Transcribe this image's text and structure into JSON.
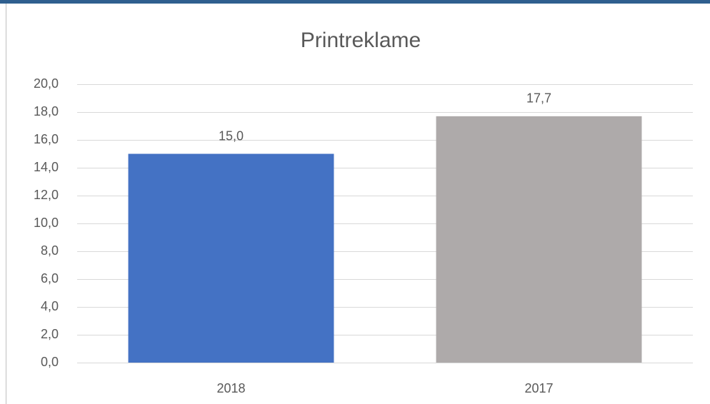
{
  "chart_data": {
    "type": "bar",
    "title": "Printreklame",
    "categories": [
      "2018",
      "2017"
    ],
    "values": [
      15.0,
      17.7
    ],
    "value_labels": [
      "15,0",
      "17,7"
    ],
    "colors": [
      "#4472c4",
      "#aeaaaa"
    ],
    "ylim": [
      0,
      20
    ],
    "yticks": [
      {
        "value": 0,
        "label": "0,0"
      },
      {
        "value": 2,
        "label": "2,0"
      },
      {
        "value": 4,
        "label": "4,0"
      },
      {
        "value": 6,
        "label": "6,0"
      },
      {
        "value": 8,
        "label": "8,0"
      },
      {
        "value": 10,
        "label": "10,0"
      },
      {
        "value": 12,
        "label": "12,0"
      },
      {
        "value": 14,
        "label": "14,0"
      },
      {
        "value": 16,
        "label": "16,0"
      },
      {
        "value": 18,
        "label": "18,0"
      },
      {
        "value": 20,
        "label": "20,0"
      }
    ],
    "grid": true
  }
}
